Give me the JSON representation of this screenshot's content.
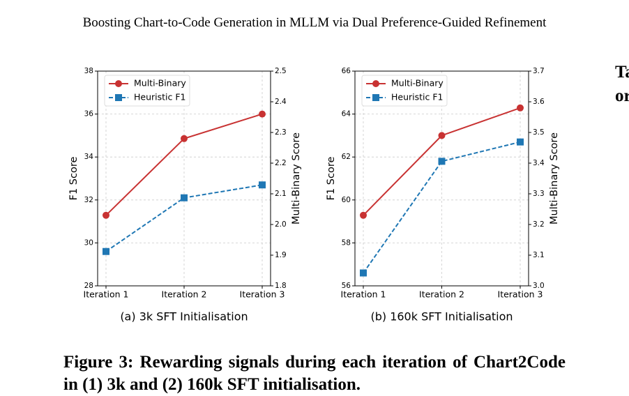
{
  "header": {
    "title": "Boosting Chart-to-Code Generation in MLLM via Dual Preference-Guided Refinement"
  },
  "chart_data": [
    {
      "type": "line",
      "title": "(a) 3k SFT Initialisation",
      "ylabel": "F1 Score",
      "y2label": "Multi-Binary Score",
      "categories": [
        "Iteration 1",
        "Iteration 2",
        "Iteration 3"
      ],
      "series": [
        {
          "name": "Multi-Binary",
          "color": "#c83232",
          "marker": "o",
          "linestyle": "solid",
          "axis": "y2",
          "values": [
            2.03,
            2.28,
            2.36
          ]
        },
        {
          "name": "Heuristic F1",
          "color": "#1f77b4",
          "marker": "s",
          "linestyle": "dashed",
          "values": [
            29.6,
            32.1,
            32.7
          ]
        }
      ],
      "ylim": [
        28,
        38
      ],
      "yticks": [
        28,
        30,
        32,
        34,
        36,
        38
      ],
      "y2lim": [
        1.8,
        2.5
      ],
      "y2ticks": [
        1.8,
        1.9,
        {
          "value": 2,
          "label": "2.0"
        },
        2.1,
        2.2,
        2.3,
        2.4,
        2.5
      ],
      "grid": true,
      "legend": "upper left"
    },
    {
      "type": "line",
      "title": "(b) 160k SFT Initialisation",
      "ylabel": "F1 Score",
      "y2label": "Multi-Binary Score",
      "categories": [
        "Iteration 1",
        "Iteration 2",
        "Iteration 3"
      ],
      "series": [
        {
          "name": "Multi-Binary",
          "color": "#c83232",
          "marker": "o",
          "linestyle": "solid",
          "axis": "y2",
          "values": [
            3.23,
            3.49,
            3.58
          ]
        },
        {
          "name": "Heuristic F1",
          "color": "#1f77b4",
          "marker": "s",
          "linestyle": "dashed",
          "values": [
            56.6,
            61.8,
            62.7
          ]
        }
      ],
      "ylim": [
        56,
        66
      ],
      "yticks": [
        56,
        58,
        60,
        62,
        64,
        66
      ],
      "y2lim": [
        3,
        3.7
      ],
      "y2ticks": [
        {
          "value": 3,
          "label": "3.0"
        },
        3.1,
        3.2,
        3.3,
        3.4,
        3.5,
        3.6,
        3.7
      ],
      "grid": true,
      "legend": "upper left"
    }
  ],
  "caption": "Figure 3: Rewarding signals during each iteration of Chart2Code in (1) 3k and (2) 160k SFT initialisation.",
  "side_fragments": [
    "Ta",
    "or"
  ]
}
